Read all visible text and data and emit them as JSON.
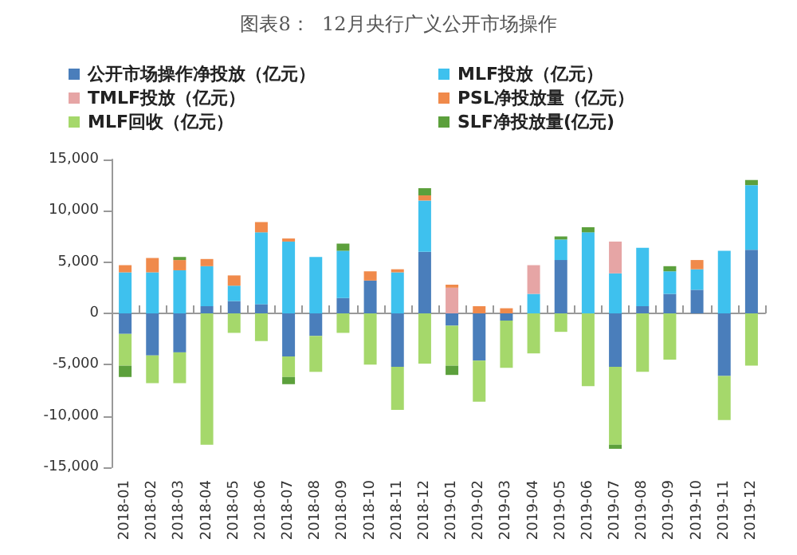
{
  "chart_data": {
    "type": "bar",
    "title": "图表8：  12月央行广义公开市场操作",
    "stacked": true,
    "legend": "top",
    "categories": [
      "2018-01",
      "2018-02",
      "2018-03",
      "2018-04",
      "2018-05",
      "2018-06",
      "2018-07",
      "2018-08",
      "2018-09",
      "2018-10",
      "2018-11",
      "2018-12",
      "2019-01",
      "2019-02",
      "2019-03",
      "2019-04",
      "2019-05",
      "2019-06",
      "2019-07",
      "2019-08",
      "2019-09",
      "2019-10",
      "2019-11",
      "2019-12"
    ],
    "ylim": [
      -15000,
      15000
    ],
    "yticks": [
      {
        "value": -15000,
        "label": "-15,000"
      },
      {
        "value": -10000,
        "label": "-10,000"
      },
      {
        "value": -5000,
        "label": "-5,000"
      },
      0,
      {
        "value": 5000,
        "label": "5,000"
      },
      {
        "value": 10000,
        "label": "10,000"
      },
      {
        "value": 15000,
        "label": "15,000"
      }
    ],
    "series": [
      {
        "name": "公开市场操作净投放（亿元）",
        "color": "#4a7ebb",
        "values": [
          -2000,
          -4100,
          -3800,
          700,
          1200,
          900,
          -4200,
          -2200,
          1500,
          3200,
          -5200,
          6000,
          -1200,
          -4600,
          -700,
          null,
          5200,
          null,
          -5200,
          700,
          1900,
          2300,
          -6100,
          6200
        ]
      },
      {
        "name": "MLF投放（亿元）",
        "color": "#3ec1ee",
        "values": [
          4000,
          4000,
          4200,
          3900,
          1500,
          7000,
          7000,
          5500,
          4600,
          null,
          4000,
          5000,
          null,
          null,
          null,
          1900,
          2000,
          7900,
          3900,
          5700,
          2200,
          2000,
          6100,
          6300
        ]
      },
      {
        "name": "TMLF投放（亿元）",
        "color": "#e6a5a5",
        "values": [
          null,
          null,
          null,
          null,
          null,
          null,
          null,
          null,
          null,
          null,
          null,
          null,
          2500,
          null,
          null,
          2800,
          null,
          null,
          3100,
          null,
          null,
          null,
          null,
          null
        ]
      },
      {
        "name": "PSL净投放量（亿元）",
        "color": "#f08a4b",
        "values": [
          700,
          1400,
          1000,
          700,
          1000,
          1000,
          300,
          null,
          null,
          900,
          300,
          500,
          300,
          700,
          500,
          null,
          null,
          null,
          null,
          null,
          null,
          900,
          null,
          null
        ]
      },
      {
        "name": "MLF回收（亿元）",
        "color": "#a5d86b",
        "values": [
          -3100,
          -2700,
          -3000,
          -12800,
          -1900,
          -2700,
          -2000,
          -3500,
          -1900,
          -5000,
          -4200,
          -4900,
          -3900,
          -4000,
          -4600,
          -3900,
          -1800,
          -7100,
          -7600,
          -5700,
          -4500,
          null,
          -4300,
          -5100
        ]
      },
      {
        "name": "SLF净投放量(亿元)",
        "color": "#5ca03c",
        "values": [
          -1100,
          null,
          300,
          null,
          null,
          null,
          -700,
          null,
          700,
          null,
          null,
          700,
          -900,
          null,
          null,
          null,
          300,
          500,
          -400,
          null,
          500,
          null,
          null,
          500
        ]
      }
    ]
  }
}
